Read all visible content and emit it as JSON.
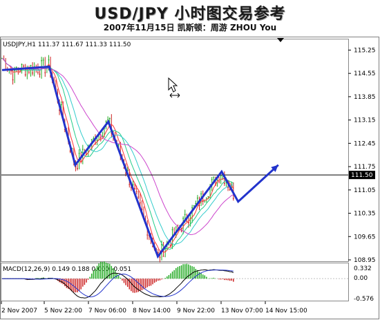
{
  "header": {
    "title": "USD/JPY 小时图交易参考",
    "subtitle": "2007年11月15日  凯斯顿：周游 ZHOU You"
  },
  "chart_window": {
    "symbol_line": "USDJPY,H1  111.37 111.67 111.33 111.50",
    "current_price_label": "111.50",
    "current_price": 111.5,
    "macd_label": "MACD(12,26,9) 0.149 0.188 0.000 -0.051",
    "macd_ticks": [
      "0.332",
      "0.00",
      "-0.576"
    ],
    "colors": {
      "projection": "#2233cc",
      "bull_candle": "#22aa22",
      "bear_candle": "#cc2222",
      "ma1": "#ff3333",
      "ma2": "#22cc88",
      "ma3": "#33cccc",
      "ma4": "#cc44cc"
    }
  },
  "chart_data": {
    "type": "candlestick",
    "y_ticks": [
      "115.25",
      "114.55",
      "113.85",
      "113.15",
      "112.45",
      "111.75",
      "111.05",
      "110.35",
      "109.65",
      "108.95"
    ],
    "ylim": [
      108.95,
      115.55
    ],
    "x_labels": [
      "2 Nov 2007",
      "5 Nov 22:00",
      "7 Nov 06:00",
      "8 Nov 14:00",
      "9 Nov 22:00",
      "13 Nov 07:00",
      "14 Nov 15:00"
    ],
    "projection_path": [
      {
        "x": 0.0,
        "y": 114.65
      },
      {
        "x": 1.0,
        "y": 114.75
      },
      {
        "x": 1.55,
        "y": 111.8
      },
      {
        "x": 2.25,
        "y": 113.1
      },
      {
        "x": 3.3,
        "y": 109.05
      },
      {
        "x": 4.65,
        "y": 111.6
      },
      {
        "x": 5.0,
        "y": 110.7
      },
      {
        "x": 5.85,
        "y": 111.8
      }
    ]
  }
}
